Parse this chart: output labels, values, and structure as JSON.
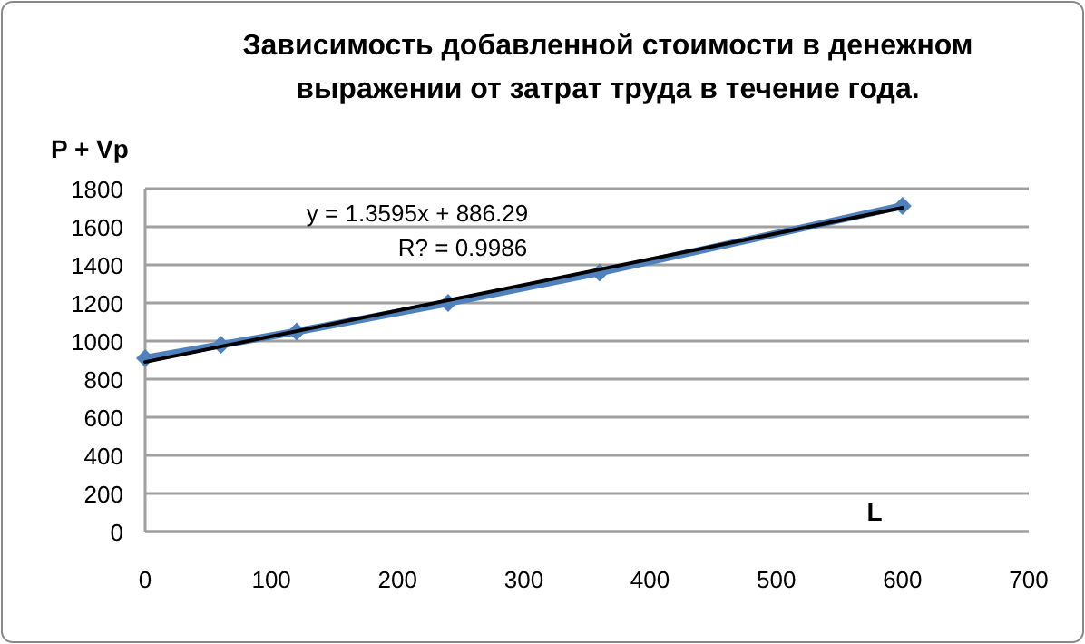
{
  "chart_data": {
    "type": "line",
    "title": "Зависимость добавленной стоимости в денежном выражении от затрат труда в течение года.",
    "xlabel": "L",
    "ylabel": "P + Vp",
    "annotations": [
      "y = 1.3595x + 886.29",
      "R? = 0.9986"
    ],
    "series": [
      {
        "color": "#4f81bd",
        "x": [
          0,
          60,
          120,
          240,
          360,
          600
        ],
        "values": [
          910,
          980,
          1050,
          1200,
          1360,
          1710
        ],
        "marker": "diamond"
      },
      {
        "type": "line",
        "color": "#000000",
        "x": [
          0,
          600
        ],
        "values": [
          890,
          1700
        ],
        "marker": "none"
      }
    ],
    "xlim": [
      0,
      700
    ],
    "xticks": [
      0,
      100,
      200,
      300,
      400,
      500,
      600,
      700
    ],
    "ylim": [
      0,
      1800
    ],
    "yticks": [
      0,
      200,
      400,
      600,
      800,
      1000,
      1200,
      1400,
      1600,
      1800
    ],
    "grid": "y"
  }
}
